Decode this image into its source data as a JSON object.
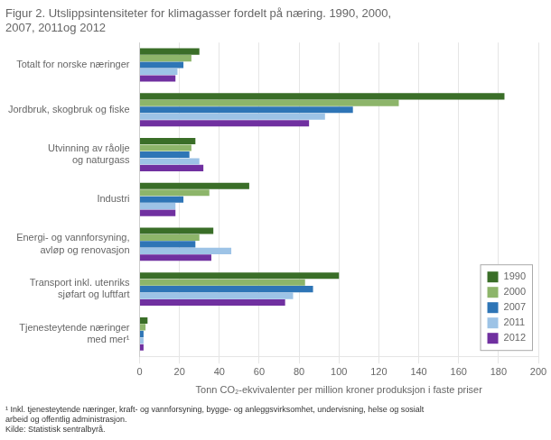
{
  "chart_data": {
    "type": "bar",
    "orientation": "horizontal",
    "title": "Figur 2. Utslippsintensiteter for klimagasser fordelt på næring. 1990, 2000,\n2007, 2011og 2012",
    "categories": [
      "Totalt for norske næringer",
      "Jordbruk, skogbruk og fiske",
      "Utvinning av råolje\nog naturgass",
      "Industri",
      "Energi- og vannforsyning,\navløp og renovasjon",
      "Transport inkl. utenriks\nsjøfart og luftfart",
      "Tjenesteytende næringer\nmed mer¹"
    ],
    "series": [
      {
        "name": "1990",
        "color": "#3a6e28",
        "values": [
          30,
          183,
          28,
          55,
          37,
          100,
          4
        ]
      },
      {
        "name": "2000",
        "color": "#8db56a",
        "values": [
          26,
          130,
          26,
          35,
          30,
          83,
          3
        ]
      },
      {
        "name": "2007",
        "color": "#2e75b6",
        "values": [
          22,
          107,
          25,
          22,
          28,
          87,
          2
        ]
      },
      {
        "name": "2011",
        "color": "#9dc3e6",
        "values": [
          19,
          93,
          30,
          18,
          46,
          77,
          2
        ]
      },
      {
        "name": "2012",
        "color": "#7030a0",
        "values": [
          18,
          85,
          32,
          18,
          36,
          73,
          2
        ]
      }
    ],
    "xlabel": "Tonn CO₂-ekvivalenter per million kroner produksjon i faste priser",
    "xlim": [
      0,
      200
    ],
    "xticks": [
      0,
      20,
      40,
      60,
      80,
      100,
      120,
      140,
      160,
      180,
      200
    ],
    "grid": true,
    "legend": "lower right",
    "footnote": "¹ Inkl. tjenesteytende næringer, kraft- og vannforsyning, bygge- og anleggsvirksomhet, undervisning, helse og sosialt\narbeid og offentlig administrasjon.\nKilde: Statistisk sentralbyrå."
  }
}
